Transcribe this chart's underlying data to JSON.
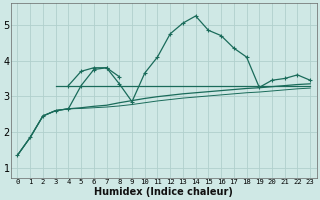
{
  "xlabel": "Humidex (Indice chaleur)",
  "xlim": [
    -0.5,
    23.5
  ],
  "ylim": [
    0.7,
    5.6
  ],
  "xticks": [
    0,
    1,
    2,
    3,
    4,
    5,
    6,
    7,
    8,
    9,
    10,
    11,
    12,
    13,
    14,
    15,
    16,
    17,
    18,
    19,
    20,
    21,
    22,
    23
  ],
  "yticks": [
    1,
    2,
    3,
    4,
    5
  ],
  "bg_color": "#cfe8e5",
  "grid_color": "#b0d0cc",
  "line_color": "#1a6b5a",
  "curve_main_x": [
    0,
    1,
    2,
    3,
    4,
    5,
    6,
    7,
    8,
    9,
    10,
    11,
    12,
    13,
    14,
    15,
    16,
    17,
    18,
    19,
    20,
    21,
    22,
    23
  ],
  "curve_main_y": [
    1.35,
    1.85,
    2.45,
    2.6,
    2.65,
    3.3,
    3.75,
    3.8,
    3.35,
    2.85,
    3.65,
    4.1,
    4.75,
    5.05,
    5.25,
    4.85,
    4.7,
    4.35,
    4.1,
    3.25,
    3.45,
    3.5,
    3.6,
    3.45
  ],
  "curve_hump_x": [
    4,
    5,
    6,
    7,
    8
  ],
  "curve_hump_y": [
    3.3,
    3.7,
    3.8,
    3.8,
    3.55
  ],
  "curve_flat_x": [
    3,
    4,
    5,
    6,
    7,
    8,
    9,
    10,
    11,
    12,
    13,
    14,
    15,
    16,
    17,
    18,
    19,
    20,
    21,
    22,
    23
  ],
  "curve_flat_y": [
    3.3,
    3.3,
    3.3,
    3.3,
    3.3,
    3.3,
    3.3,
    3.3,
    3.3,
    3.3,
    3.3,
    3.3,
    3.3,
    3.3,
    3.3,
    3.3,
    3.3,
    3.3,
    3.3,
    3.3,
    3.3
  ],
  "curve_rise1_x": [
    0,
    1,
    2,
    3,
    4,
    5,
    6,
    7,
    8,
    9,
    10,
    11,
    12,
    13,
    14,
    15,
    16,
    17,
    18,
    19,
    20,
    21,
    22,
    23
  ],
  "curve_rise1_y": [
    1.35,
    1.85,
    2.45,
    2.6,
    2.65,
    2.68,
    2.72,
    2.75,
    2.82,
    2.88,
    2.94,
    2.99,
    3.03,
    3.07,
    3.1,
    3.13,
    3.16,
    3.19,
    3.22,
    3.24,
    3.27,
    3.3,
    3.33,
    3.35
  ],
  "curve_rise2_x": [
    0,
    1,
    2,
    3,
    4,
    5,
    6,
    7,
    8,
    9,
    10,
    11,
    12,
    13,
    14,
    15,
    16,
    17,
    18,
    19,
    20,
    21,
    22,
    23
  ],
  "curve_rise2_y": [
    1.35,
    1.85,
    2.45,
    2.6,
    2.65,
    2.66,
    2.68,
    2.7,
    2.73,
    2.77,
    2.82,
    2.87,
    2.91,
    2.95,
    2.98,
    3.01,
    3.04,
    3.07,
    3.1,
    3.12,
    3.15,
    3.18,
    3.21,
    3.23
  ]
}
